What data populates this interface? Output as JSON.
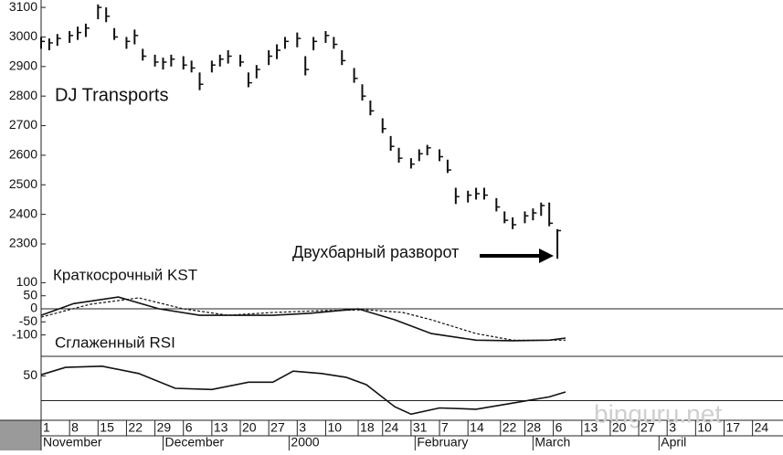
{
  "chart_data": [
    {
      "type": "ohlc",
      "title": "DJ Transports",
      "annotation": "Двухбарный разворот",
      "watermark": "binguru.net",
      "color": "#111111",
      "xlim": [
        0,
        182.5
      ],
      "ylim": [
        2198,
        3125
      ],
      "yticks": [
        2300,
        2400,
        2500,
        2600,
        2700,
        2800,
        2900,
        3000,
        3100
      ],
      "x": [
        0,
        2,
        4,
        7,
        9,
        11,
        14,
        16,
        18,
        21,
        23,
        25,
        28,
        30,
        32,
        35,
        37,
        39,
        42,
        44,
        46,
        49,
        51,
        53,
        56,
        58,
        60,
        63,
        65,
        67,
        70,
        72,
        74,
        77,
        79,
        81,
        84,
        86,
        88,
        91,
        93,
        95,
        98,
        100,
        102,
        105,
        107,
        109,
        112,
        114,
        116,
        119,
        121,
        123,
        125,
        127
      ],
      "high": [
        3000,
        2995,
        3010,
        3020,
        3035,
        3045,
        3110,
        3100,
        3030,
        3000,
        3025,
        2960,
        2940,
        2930,
        2940,
        2935,
        2920,
        2880,
        2920,
        2940,
        2955,
        2940,
        2880,
        2905,
        2955,
        2975,
        3000,
        3015,
        2935,
        3000,
        3020,
        3000,
        2955,
        2895,
        2840,
        2785,
        2725,
        2665,
        2625,
        2590,
        2620,
        2635,
        2620,
        2585,
        2490,
        2480,
        2490,
        2490,
        2455,
        2410,
        2390,
        2410,
        2420,
        2440,
        2440,
        2350
      ],
      "low": [
        2960,
        2955,
        2970,
        2980,
        2990,
        3000,
        3060,
        3050,
        2990,
        2960,
        2975,
        2920,
        2900,
        2890,
        2900,
        2890,
        2880,
        2820,
        2880,
        2900,
        2910,
        2900,
        2830,
        2860,
        2905,
        2925,
        2960,
        2965,
        2870,
        2955,
        2980,
        2960,
        2905,
        2845,
        2785,
        2735,
        2675,
        2615,
        2575,
        2555,
        2580,
        2600,
        2580,
        2540,
        2435,
        2440,
        2450,
        2450,
        2410,
        2370,
        2350,
        2370,
        2380,
        2395,
        2360,
        2250
      ],
      "close": [
        2985,
        2980,
        2995,
        3005,
        3015,
        3030,
        3100,
        3070,
        3000,
        2985,
        3005,
        2935,
        2915,
        2915,
        2925,
        2905,
        2895,
        2840,
        2905,
        2925,
        2935,
        2915,
        2845,
        2890,
        2935,
        2955,
        2985,
        2995,
        2890,
        2985,
        3005,
        2975,
        2920,
        2860,
        2800,
        2750,
        2690,
        2630,
        2590,
        2570,
        2605,
        2625,
        2595,
        2550,
        2460,
        2465,
        2470,
        2465,
        2425,
        2380,
        2365,
        2395,
        2405,
        2430,
        2370,
        2345
      ]
    },
    {
      "type": "line",
      "title": "Краткосрочный KST",
      "xlim": [
        0,
        182.5
      ],
      "ylim": [
        -182,
        133
      ],
      "yticks": [
        100,
        50,
        0,
        -50,
        -100
      ],
      "hline": 0,
      "series": [
        {
          "color": "#111111",
          "dash": false,
          "x": [
            0,
            8,
            19,
            29,
            39,
            48,
            57,
            66,
            78,
            87,
            96,
            107,
            116,
            125,
            129
          ],
          "values": [
            -25,
            20,
            45,
            0,
            -25,
            -25,
            -25,
            -17,
            0,
            -42,
            -95,
            -120,
            -122,
            -120,
            -112
          ]
        },
        {
          "color": "#111111",
          "dash": true,
          "x": [
            0,
            12,
            24,
            35,
            46,
            57,
            69,
            80,
            89,
            96,
            107,
            116,
            129
          ],
          "values": [
            -32,
            17,
            42,
            0,
            -25,
            -14,
            -7,
            -4,
            -14,
            -42,
            -95,
            -120,
            -120
          ]
        }
      ]
    },
    {
      "type": "line",
      "title": "Сглаженный RSI",
      "xlim": [
        0,
        182.5
      ],
      "ylim": [
        14,
        66
      ],
      "yticks": [
        50
      ],
      "hline": 30,
      "series": [
        {
          "color": "#111111",
          "dash": false,
          "x": [
            0,
            6,
            15,
            24,
            33,
            42,
            51,
            57,
            62,
            69,
            75,
            80,
            87,
            91,
            98,
            107,
            116,
            125,
            129
          ],
          "values": [
            51,
            57,
            58,
            52,
            40,
            39,
            45,
            45,
            54,
            52,
            49,
            43,
            25,
            19,
            24,
            23,
            28,
            33,
            37
          ]
        }
      ],
      "xticks": [
        {
          "value": 0,
          "label": "1"
        },
        {
          "value": 7,
          "label": "8"
        },
        {
          "value": 14,
          "label": "15"
        },
        {
          "value": 21,
          "label": "22"
        },
        {
          "value": 28,
          "label": "29"
        },
        {
          "value": 35,
          "label": "6"
        },
        {
          "value": 42,
          "label": "13"
        },
        {
          "value": 49,
          "label": "20"
        },
        {
          "value": 56,
          "label": "27"
        },
        {
          "value": 63,
          "label": "3"
        },
        {
          "value": 70,
          "label": "10"
        },
        {
          "value": 78,
          "label": "18"
        },
        {
          "value": 84,
          "label": "24"
        },
        {
          "value": 91,
          "label": "31"
        },
        {
          "value": 98,
          "label": "7"
        },
        {
          "value": 105,
          "label": "14"
        },
        {
          "value": 113,
          "label": "22"
        },
        {
          "value": 119,
          "label": "28"
        },
        {
          "value": 126,
          "label": "6"
        },
        {
          "value": 133,
          "label": "13"
        },
        {
          "value": 140,
          "label": "20"
        },
        {
          "value": 147,
          "label": "27"
        },
        {
          "value": 154,
          "label": "3"
        },
        {
          "value": 161,
          "label": "10"
        },
        {
          "value": 168,
          "label": "17"
        },
        {
          "value": 175,
          "label": "24"
        }
      ],
      "month_ticks": [
        {
          "value": 0,
          "label": "November"
        },
        {
          "value": 30,
          "label": "December"
        },
        {
          "value": 61,
          "label": "2000"
        },
        {
          "value": 92,
          "label": "February"
        },
        {
          "value": 121,
          "label": "March"
        },
        {
          "value": 152,
          "label": "April"
        }
      ]
    }
  ]
}
